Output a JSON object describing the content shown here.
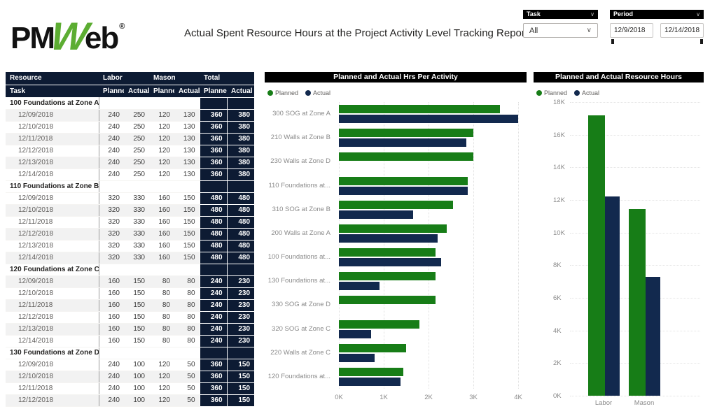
{
  "colors": {
    "planned_green": "#177d17",
    "actual_navy": "#12294e",
    "logo_green": "#5cad32",
    "table_header_bg": "#0d1b33",
    "panel_title_bg": "#000000",
    "alt_row": "#f2f2f2"
  },
  "header": {
    "logo_pm": "PM",
    "logo_w": "W",
    "logo_eb": "eb",
    "logo_reg": "®",
    "title": "Actual Spent Resource Hours at the Project Activity Level Tracking Report",
    "task_slicer": {
      "label": "Task",
      "value": "All"
    },
    "period_slicer": {
      "label": "Period",
      "start": "12/9/2018",
      "end": "12/14/2018"
    }
  },
  "table": {
    "header_row1": {
      "resource": "Resource",
      "labor": "Labor",
      "mason": "Mason",
      "total": "Total"
    },
    "header_row2": {
      "task": "Task",
      "cols": [
        "Planned",
        "Actual",
        "Planned",
        "Actual",
        "Planned",
        "Actual"
      ]
    },
    "groups": [
      {
        "task": "100 Foundations at Zone A",
        "rows": [
          {
            "date": "12/09/2018",
            "values": [
              240,
              250,
              120,
              130,
              360,
              380
            ]
          },
          {
            "date": "12/10/2018",
            "values": [
              240,
              250,
              120,
              130,
              360,
              380
            ]
          },
          {
            "date": "12/11/2018",
            "values": [
              240,
              250,
              120,
              130,
              360,
              380
            ]
          },
          {
            "date": "12/12/2018",
            "values": [
              240,
              250,
              120,
              130,
              360,
              380
            ]
          },
          {
            "date": "12/13/2018",
            "values": [
              240,
              250,
              120,
              130,
              360,
              380
            ]
          },
          {
            "date": "12/14/2018",
            "values": [
              240,
              250,
              120,
              130,
              360,
              380
            ]
          }
        ]
      },
      {
        "task": "110 Foundations at Zone B",
        "rows": [
          {
            "date": "12/09/2018",
            "values": [
              320,
              330,
              160,
              150,
              480,
              480
            ]
          },
          {
            "date": "12/10/2018",
            "values": [
              320,
              330,
              160,
              150,
              480,
              480
            ]
          },
          {
            "date": "12/11/2018",
            "values": [
              320,
              330,
              160,
              150,
              480,
              480
            ]
          },
          {
            "date": "12/12/2018",
            "values": [
              320,
              330,
              160,
              150,
              480,
              480
            ]
          },
          {
            "date": "12/13/2018",
            "values": [
              320,
              330,
              160,
              150,
              480,
              480
            ]
          },
          {
            "date": "12/14/2018",
            "values": [
              320,
              330,
              160,
              150,
              480,
              480
            ]
          }
        ]
      },
      {
        "task": "120 Foundations at Zone C",
        "rows": [
          {
            "date": "12/09/2018",
            "values": [
              160,
              150,
              80,
              80,
              240,
              230
            ]
          },
          {
            "date": "12/10/2018",
            "values": [
              160,
              150,
              80,
              80,
              240,
              230
            ]
          },
          {
            "date": "12/11/2018",
            "values": [
              160,
              150,
              80,
              80,
              240,
              230
            ]
          },
          {
            "date": "12/12/2018",
            "values": [
              160,
              150,
              80,
              80,
              240,
              230
            ]
          },
          {
            "date": "12/13/2018",
            "values": [
              160,
              150,
              80,
              80,
              240,
              230
            ]
          },
          {
            "date": "12/14/2018",
            "values": [
              160,
              150,
              80,
              80,
              240,
              230
            ]
          }
        ]
      },
      {
        "task": "130 Foundations at Zone D",
        "rows": [
          {
            "date": "12/09/2018",
            "values": [
              240,
              100,
              120,
              50,
              360,
              150
            ]
          },
          {
            "date": "12/10/2018",
            "values": [
              240,
              100,
              120,
              50,
              360,
              150
            ]
          },
          {
            "date": "12/11/2018",
            "values": [
              240,
              100,
              120,
              50,
              360,
              150
            ]
          },
          {
            "date": "12/12/2018",
            "values": [
              240,
              100,
              120,
              50,
              360,
              150
            ]
          }
        ]
      }
    ]
  },
  "chart_data": [
    {
      "type": "bar",
      "orientation": "horizontal",
      "title": "Planned and Actual Hrs Per Activity",
      "categories": [
        "300 SOG at Zone A",
        "210 Walls at Zone B",
        "230 Walls at Zone D",
        "110 Foundations at...",
        "310 SOG at Zone B",
        "200 Walls at Zone A",
        "100 Foundations at...",
        "130 Foundations at...",
        "330 SOG at Zone D",
        "320 SOG at Zone C",
        "220 Walls at Zone C",
        "120 Foundations at..."
      ],
      "series": [
        {
          "name": "Planned",
          "color": "#177d17",
          "values": [
            3600,
            3000,
            3000,
            2880,
            2550,
            2400,
            2160,
            2160,
            2160,
            1800,
            1500,
            1440
          ]
        },
        {
          "name": "Actual",
          "color": "#12294e",
          "values": [
            4000,
            2850,
            0,
            2880,
            1650,
            2200,
            2280,
            900,
            0,
            720,
            800,
            1380
          ]
        }
      ],
      "xlim": [
        0,
        4000
      ],
      "x_ticks": [
        "0K",
        "1K",
        "2K",
        "3K",
        "4K"
      ],
      "grid": true,
      "legend_position": "top"
    },
    {
      "type": "bar",
      "orientation": "vertical",
      "title": "Planned and Actual Resource Hours",
      "categories": [
        "Labor",
        "Mason"
      ],
      "series": [
        {
          "name": "Planned",
          "color": "#177d17",
          "values": [
            17200,
            11450
          ]
        },
        {
          "name": "Actual",
          "color": "#12294e",
          "values": [
            12200,
            7300
          ]
        }
      ],
      "ylim": [
        0,
        18000
      ],
      "y_ticks": [
        "0K",
        "2K",
        "4K",
        "6K",
        "8K",
        "10K",
        "12K",
        "14K",
        "16K",
        "18K"
      ],
      "grid": true,
      "legend_position": "top"
    }
  ]
}
